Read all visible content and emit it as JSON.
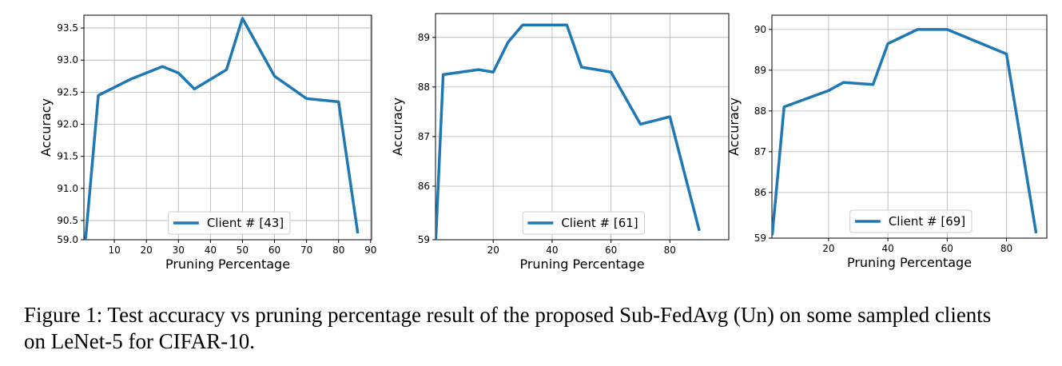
{
  "chart_data": [
    {
      "type": "line",
      "xlabel": "Pruning Percentage",
      "ylabel": "Accuracy",
      "x": [
        1,
        5,
        15,
        25,
        30,
        35,
        45,
        50,
        60,
        70,
        80,
        86
      ],
      "series": [
        {
          "name": "Client # [43]",
          "color": "#1f77b4",
          "values": [
            90.2,
            92.45,
            92.7,
            92.9,
            92.8,
            92.55,
            92.85,
            93.65,
            92.75,
            92.4,
            92.35,
            90.3
          ]
        }
      ],
      "xlim": [
        0.5,
        90.3
      ],
      "ylim": [
        90.2,
        93.7
      ],
      "xticks": [
        10,
        20,
        30,
        40,
        50,
        60,
        70,
        80,
        90
      ],
      "yticks": [
        {
          "value": 59,
          "label": "59.0"
        },
        90.5,
        {
          "value": 91,
          "label": "91.0"
        },
        91.5,
        {
          "value": 92,
          "label": "92.0"
        },
        92.5,
        {
          "value": 93,
          "label": "93.0"
        },
        93.5
      ],
      "grid": true,
      "legend": "lower center",
      "axis_break": true
    },
    {
      "type": "line",
      "xlabel": "Pruning Percentage",
      "ylabel": "Accuracy",
      "x": [
        0.5,
        3,
        15,
        20,
        25,
        30,
        45,
        50,
        60,
        70,
        80,
        90
      ],
      "series": [
        {
          "name": "Client # [61]",
          "color": "#1f77b4",
          "values": [
            84.92,
            88.25,
            88.35,
            88.3,
            88.9,
            89.25,
            89.25,
            88.4,
            88.3,
            87.25,
            87.4,
            85.1
          ]
        }
      ],
      "xlim": [
        0.4,
        100
      ],
      "ylim": [
        84.92,
        89.48
      ],
      "xticks": [
        20,
        40,
        60,
        80
      ],
      "yticks": [
        59,
        86,
        87,
        88,
        89
      ],
      "grid": true,
      "legend": "lower center",
      "axis_break": true
    },
    {
      "type": "line",
      "xlabel": "Pruning Percentage",
      "ylabel": "Accuracy",
      "x": [
        1,
        5,
        20,
        25,
        35,
        40,
        50,
        60,
        80,
        90
      ],
      "series": [
        {
          "name": "Client # [69]",
          "color": "#1f77b4",
          "values": [
            84.95,
            88.1,
            88.5,
            88.7,
            88.65,
            89.65,
            90,
            90,
            89.4,
            85.0
          ]
        }
      ],
      "xlim": [
        0.9,
        93.6
      ],
      "ylim": [
        84.88,
        90.35
      ],
      "xticks": [
        20,
        40,
        60,
        80
      ],
      "yticks": [
        59,
        86,
        87,
        88,
        89,
        90
      ],
      "grid": true,
      "legend": "lower center",
      "axis_break": true
    }
  ],
  "caption": "Figure 1: Test accuracy vs pruning percentage result of the proposed Sub-FedAvg (Un) on some sampled clients on LeNet-5 for CIFAR-10."
}
